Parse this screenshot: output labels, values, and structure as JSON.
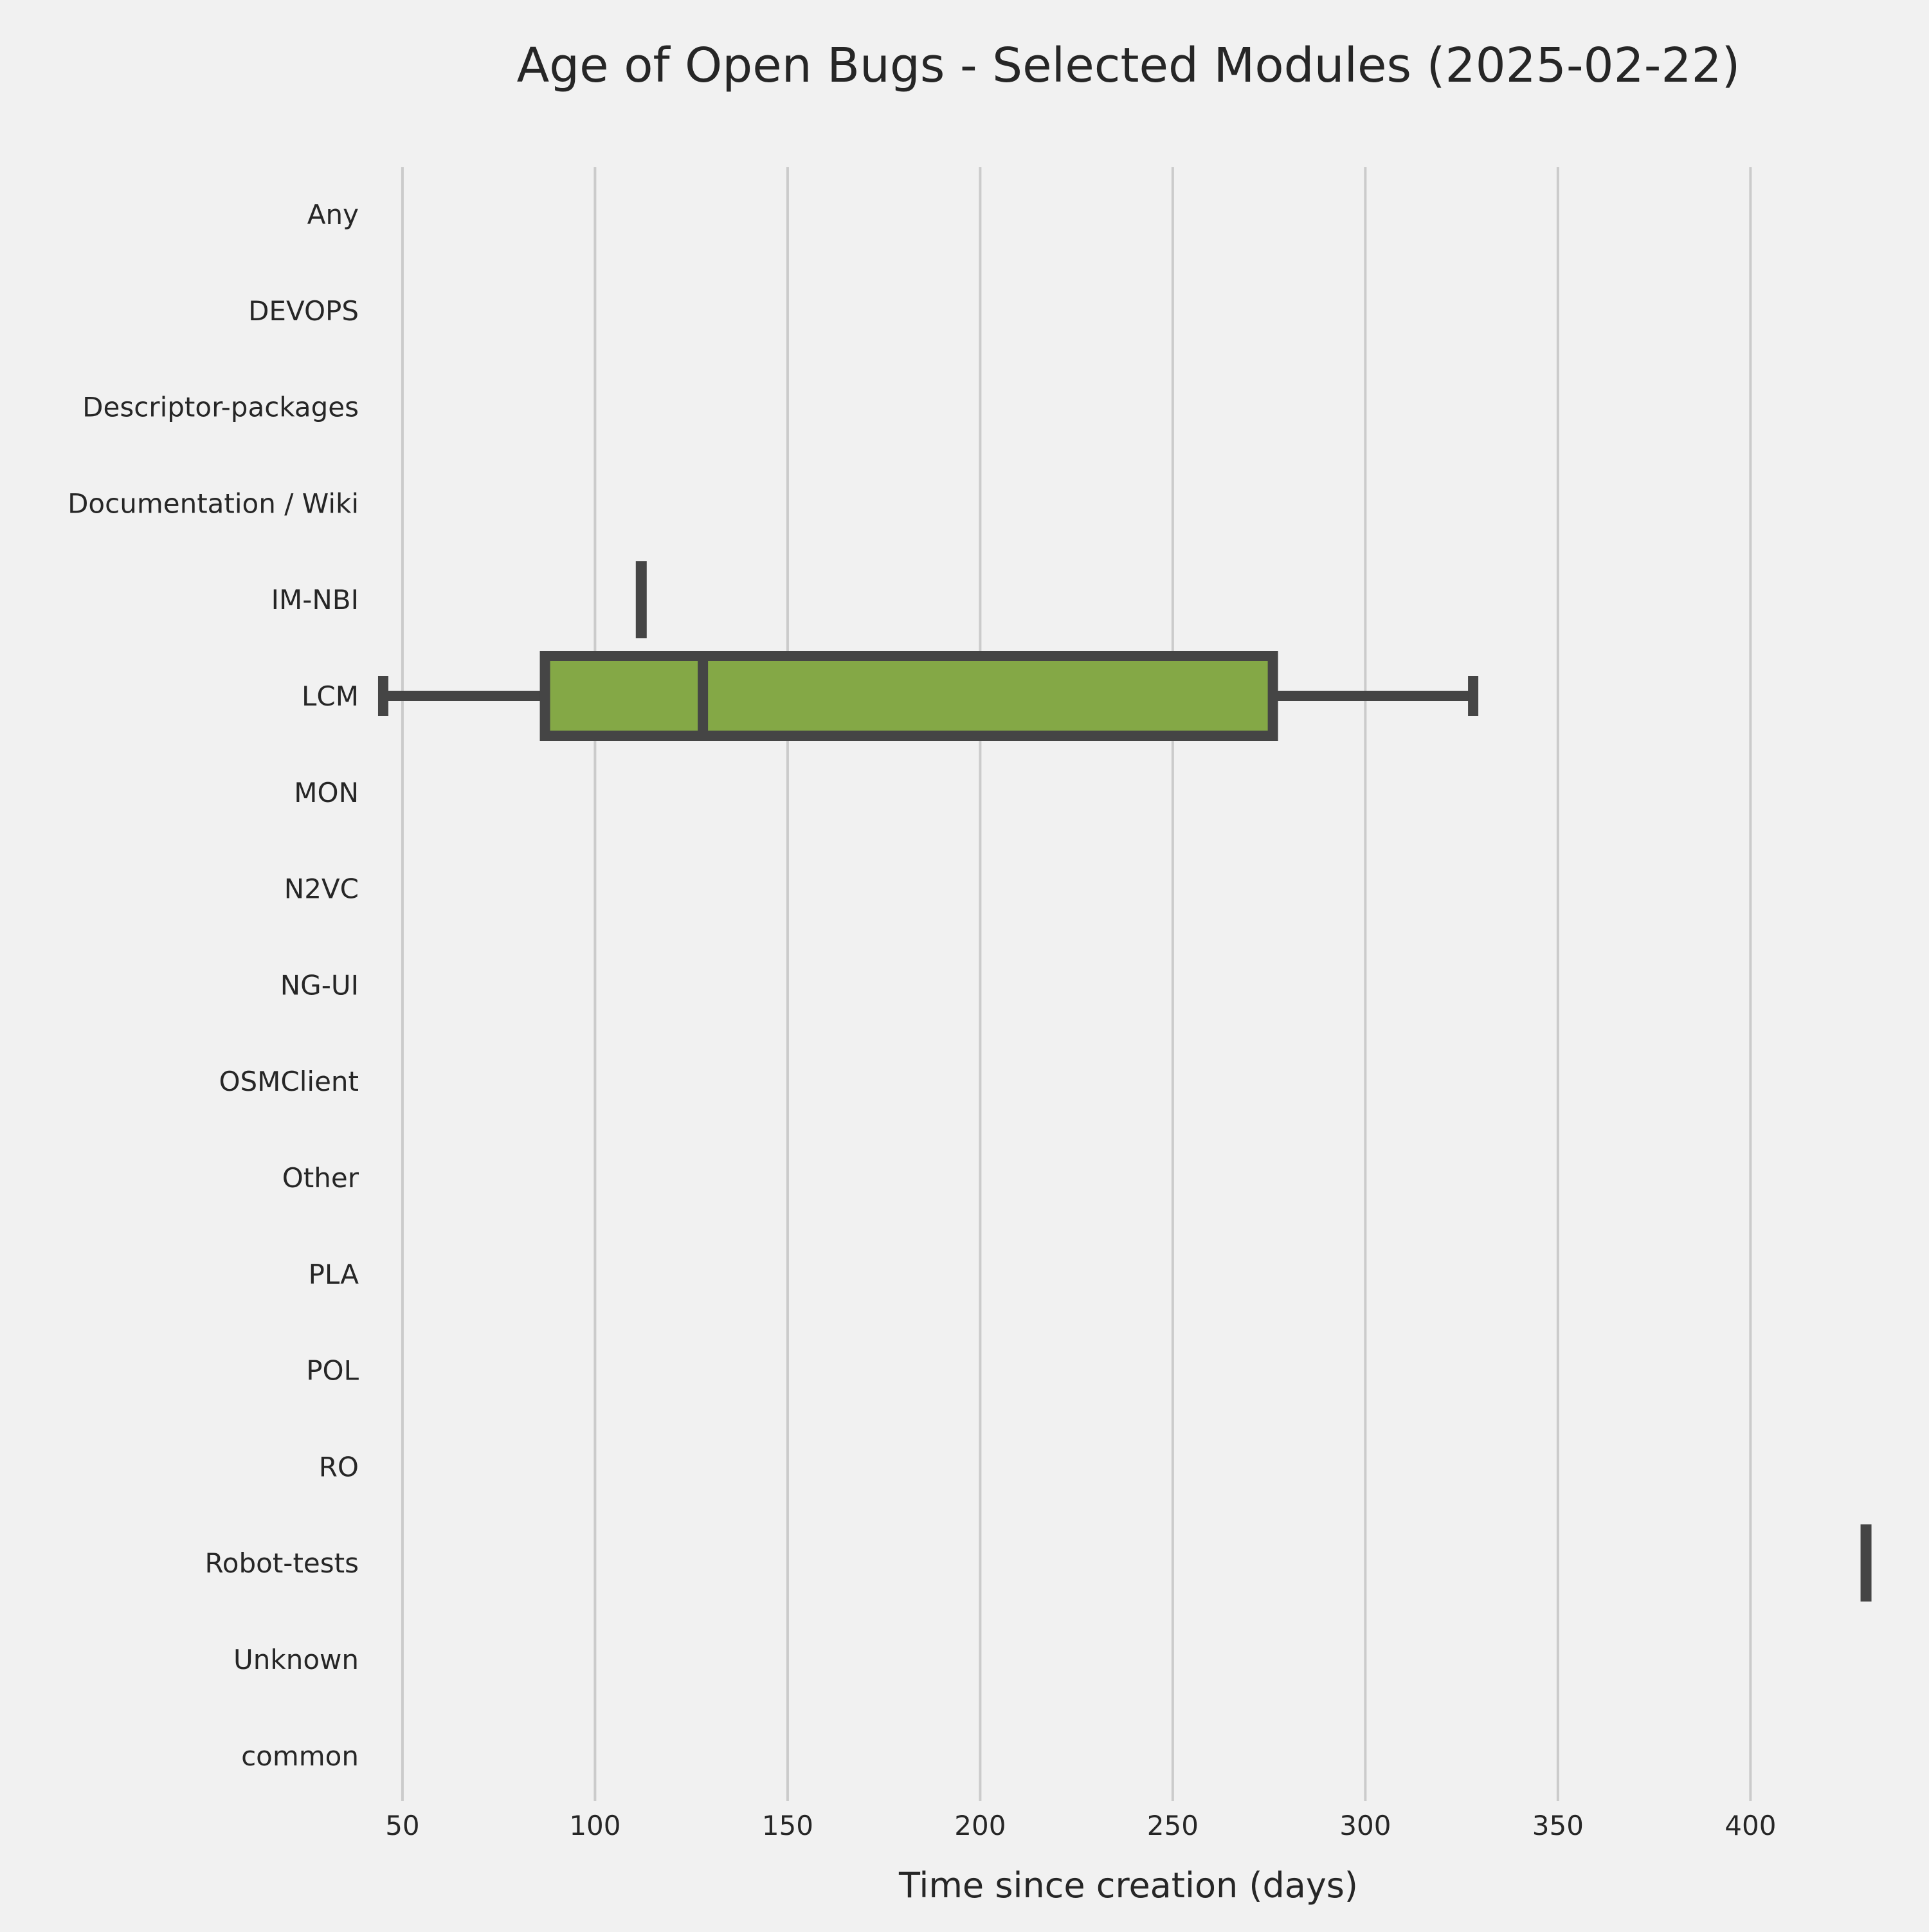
{
  "chart_data": {
    "type": "box",
    "orientation": "horizontal",
    "title": "Age of Open Bugs - Selected Modules (2025-02-22)",
    "xlabel": "Time since creation (days)",
    "ylabel": "",
    "xlim": [
      42,
      435
    ],
    "xticks": [
      50,
      100,
      150,
      200,
      250,
      300,
      350,
      400
    ],
    "grid": true,
    "grid_axis": "x",
    "categories": [
      "Any",
      "DEVOPS",
      "Descriptor-packages",
      "Documentation / Wiki",
      "IM-NBI",
      "LCM",
      "MON",
      "N2VC",
      "NG-UI",
      "OSMClient",
      "Other",
      "PLA",
      "POL",
      "RO",
      "Robot-tests",
      "Unknown",
      "common"
    ],
    "boxes": [
      {
        "category": "IM-NBI",
        "whisker_low": 112,
        "q1": 112,
        "median": 112,
        "q3": 112,
        "whisker_high": 112
      },
      {
        "category": "LCM",
        "whisker_low": 45,
        "q1": 87,
        "median": 128,
        "q3": 276,
        "whisker_high": 328
      },
      {
        "category": "Robot-tests",
        "whisker_low": 430,
        "q1": 430,
        "median": 430,
        "q3": 430,
        "whisker_high": 430
      }
    ],
    "colors": {
      "box_fill": "#84a846",
      "line": "#454545",
      "grid": "#cbcbcb",
      "background": "#f1f1f1",
      "text": "#262626"
    }
  }
}
